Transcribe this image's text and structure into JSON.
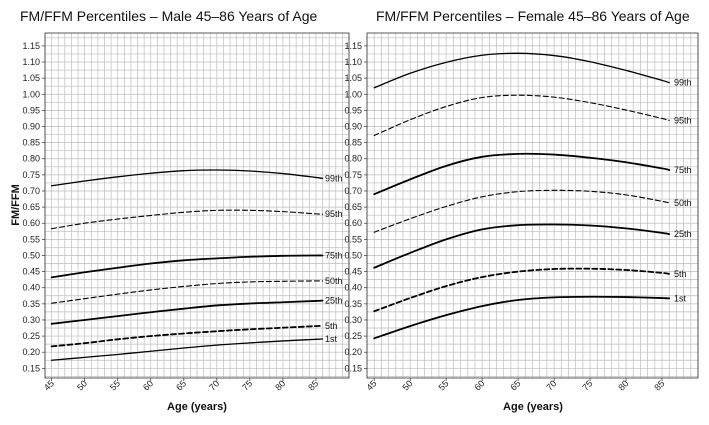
{
  "chart_data": [
    {
      "type": "line",
      "title": "FM/FFM Percentiles – Male 45–86 Years of Age",
      "xlabel": "Age (years)",
      "ylabel": "FM/FFM",
      "xlim": [
        44,
        90
      ],
      "ylim": [
        0.12,
        1.19
      ],
      "x_ticks": [
        45,
        50,
        55,
        60,
        65,
        70,
        75,
        80,
        85
      ],
      "y_ticks": [
        0.15,
        0.2,
        0.25,
        0.3,
        0.35,
        0.4,
        0.45,
        0.5,
        0.55,
        0.6,
        0.65,
        0.7,
        0.75,
        0.8,
        0.85,
        0.9,
        0.95,
        1.0,
        1.05,
        1.1,
        1.15
      ],
      "grid": true,
      "x": [
        45,
        50,
        55,
        60,
        65,
        70,
        75,
        80,
        85,
        86
      ],
      "series": [
        {
          "name": "1st",
          "style": "solid",
          "weight": "medium",
          "values": [
            0.175,
            0.184,
            0.193,
            0.203,
            0.213,
            0.222,
            0.229,
            0.235,
            0.24,
            0.241
          ]
        },
        {
          "name": "5th",
          "style": "dashed",
          "weight": "bold",
          "values": [
            0.218,
            0.228,
            0.24,
            0.25,
            0.258,
            0.265,
            0.271,
            0.276,
            0.281,
            0.282
          ]
        },
        {
          "name": "25th",
          "style": "solid",
          "weight": "bold",
          "values": [
            0.288,
            0.3,
            0.312,
            0.324,
            0.335,
            0.345,
            0.351,
            0.355,
            0.359,
            0.36
          ]
        },
        {
          "name": "50th",
          "style": "dashed",
          "weight": "thin",
          "values": [
            0.352,
            0.366,
            0.38,
            0.393,
            0.404,
            0.413,
            0.418,
            0.42,
            0.421,
            0.421
          ]
        },
        {
          "name": "75th",
          "style": "solid",
          "weight": "bold",
          "values": [
            0.432,
            0.448,
            0.462,
            0.475,
            0.485,
            0.491,
            0.496,
            0.499,
            0.5,
            0.5
          ]
        },
        {
          "name": "95th",
          "style": "dashed",
          "weight": "thin",
          "values": [
            0.583,
            0.6,
            0.613,
            0.624,
            0.634,
            0.64,
            0.64,
            0.636,
            0.629,
            0.628
          ]
        },
        {
          "name": "99th",
          "style": "solid",
          "weight": "medium",
          "values": [
            0.716,
            0.731,
            0.744,
            0.755,
            0.763,
            0.765,
            0.762,
            0.754,
            0.742,
            0.739
          ]
        }
      ]
    },
    {
      "type": "line",
      "title": "FM/FFM Percentiles – Female 45–86 Years of Age",
      "xlabel": "Age (years)",
      "ylabel": "",
      "xlim": [
        44,
        90
      ],
      "ylim": [
        0.12,
        1.19
      ],
      "x_ticks": [
        45,
        50,
        55,
        60,
        65,
        70,
        75,
        80,
        85
      ],
      "y_ticks": [
        0.15,
        0.2,
        0.25,
        0.3,
        0.35,
        0.4,
        0.45,
        0.5,
        0.55,
        0.6,
        0.65,
        0.7,
        0.75,
        0.8,
        0.85,
        0.9,
        0.95,
        1.0,
        1.05,
        1.1,
        1.15
      ],
      "grid": true,
      "x": [
        45,
        50,
        55,
        60,
        65,
        70,
        75,
        80,
        85,
        86
      ],
      "series": [
        {
          "name": "1st",
          "style": "solid",
          "weight": "bold",
          "values": [
            0.243,
            0.281,
            0.315,
            0.343,
            0.362,
            0.37,
            0.372,
            0.371,
            0.368,
            0.367
          ]
        },
        {
          "name": "5th",
          "style": "dashed",
          "weight": "bold",
          "values": [
            0.327,
            0.368,
            0.405,
            0.433,
            0.45,
            0.458,
            0.459,
            0.455,
            0.446,
            0.443
          ]
        },
        {
          "name": "25th",
          "style": "solid",
          "weight": "bold",
          "values": [
            0.462,
            0.508,
            0.55,
            0.581,
            0.594,
            0.596,
            0.593,
            0.584,
            0.57,
            0.566
          ]
        },
        {
          "name": "50th",
          "style": "dashed",
          "weight": "thin",
          "values": [
            0.572,
            0.614,
            0.652,
            0.682,
            0.698,
            0.702,
            0.699,
            0.688,
            0.668,
            0.663
          ]
        },
        {
          "name": "75th",
          "style": "solid",
          "weight": "bold",
          "values": [
            0.69,
            0.736,
            0.778,
            0.806,
            0.815,
            0.813,
            0.803,
            0.789,
            0.77,
            0.765
          ]
        },
        {
          "name": "95th",
          "style": "dashed",
          "weight": "thin",
          "values": [
            0.872,
            0.921,
            0.962,
            0.99,
            0.997,
            0.991,
            0.974,
            0.951,
            0.925,
            0.919
          ]
        },
        {
          "name": "99th",
          "style": "solid",
          "weight": "medium",
          "values": [
            1.02,
            1.065,
            1.099,
            1.121,
            1.127,
            1.12,
            1.101,
            1.074,
            1.043,
            1.036
          ]
        }
      ]
    }
  ]
}
